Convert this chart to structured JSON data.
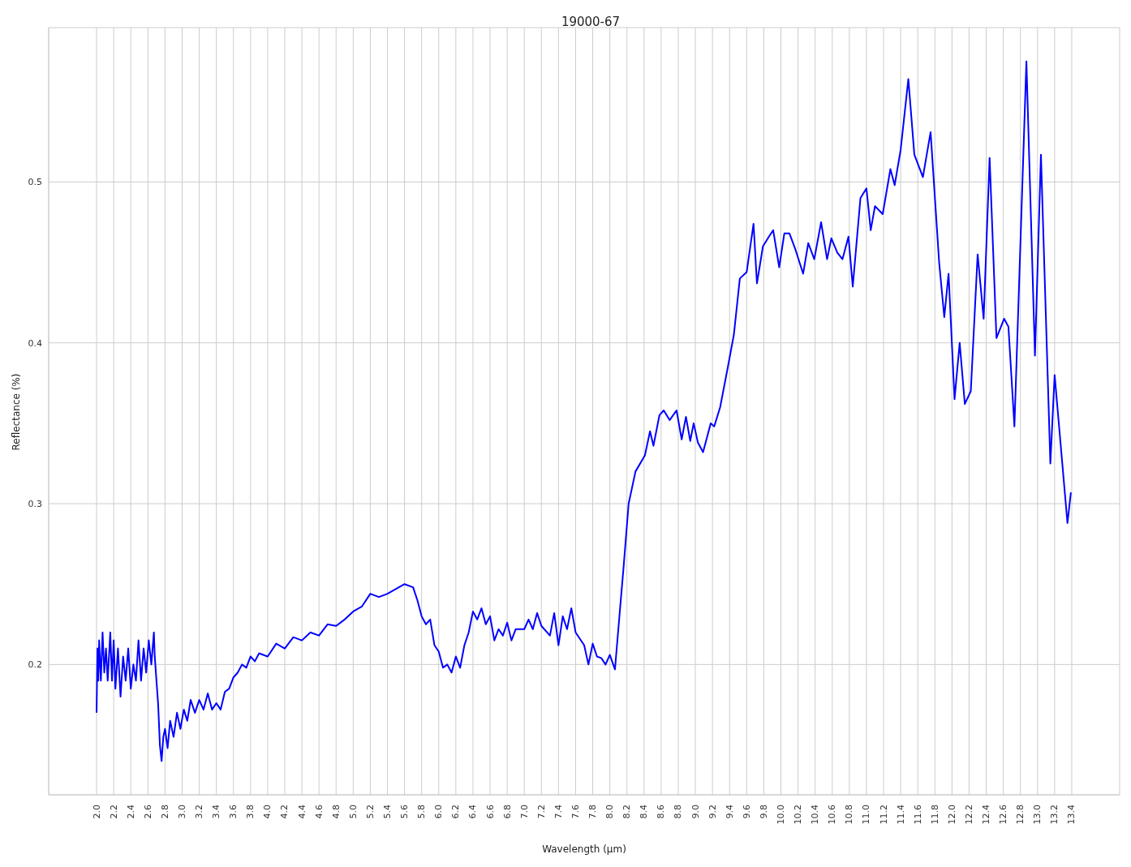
{
  "chart_data": {
    "type": "line",
    "title": "19000-67",
    "xlabel": "Wavelength (μm)",
    "ylabel": "Reflectance (%)",
    "grid": true,
    "marker": "none",
    "line_style": "solid",
    "legend": false,
    "xlim": [
      1.44,
      13.96
    ],
    "ylim": [
      0.119,
      0.596
    ],
    "yticks": [
      0.2,
      0.3,
      0.4,
      0.5
    ],
    "xticks": [
      {
        "value": 2.0,
        "label": "2.0"
      },
      {
        "value": 2.2,
        "label": "2.2"
      },
      {
        "value": 2.4,
        "label": "2.4"
      },
      {
        "value": 2.6,
        "label": "2.6"
      },
      {
        "value": 2.8,
        "label": "2.8"
      },
      {
        "value": 3.0,
        "label": "3.0"
      },
      {
        "value": 3.2,
        "label": "3.2"
      },
      {
        "value": 3.4,
        "label": "3.4"
      },
      {
        "value": 3.6,
        "label": "3.6"
      },
      {
        "value": 3.8,
        "label": "3.8"
      },
      {
        "value": 4.0,
        "label": "4.0"
      },
      {
        "value": 4.2,
        "label": "4.2"
      },
      {
        "value": 4.4,
        "label": "4.4"
      },
      {
        "value": 4.6,
        "label": "4.6"
      },
      {
        "value": 4.8,
        "label": "4.8"
      },
      {
        "value": 5.0,
        "label": "5.0"
      },
      {
        "value": 5.2,
        "label": "5.2"
      },
      {
        "value": 5.4,
        "label": "5.4"
      },
      {
        "value": 5.6,
        "label": "5.6"
      },
      {
        "value": 5.8,
        "label": "5.8"
      },
      {
        "value": 6.0,
        "label": "6.0"
      },
      {
        "value": 6.2,
        "label": "6.2"
      },
      {
        "value": 6.4,
        "label": "6.4"
      },
      {
        "value": 6.6,
        "label": "6.6"
      },
      {
        "value": 6.8,
        "label": "6.8"
      },
      {
        "value": 7.0,
        "label": "7.0"
      },
      {
        "value": 7.2,
        "label": "7.2"
      },
      {
        "value": 7.4,
        "label": "7.4"
      },
      {
        "value": 7.6,
        "label": "7.6"
      },
      {
        "value": 7.8,
        "label": "7.8"
      },
      {
        "value": 8.0,
        "label": "8.0"
      },
      {
        "value": 8.2,
        "label": "8.2"
      },
      {
        "value": 8.4,
        "label": "8.4"
      },
      {
        "value": 8.6,
        "label": "8.6"
      },
      {
        "value": 8.8,
        "label": "8.8"
      },
      {
        "value": 9.0,
        "label": "9.0"
      },
      {
        "value": 9.2,
        "label": "9.2"
      },
      {
        "value": 9.4,
        "label": "9.4"
      },
      {
        "value": 9.6,
        "label": "9.6"
      },
      {
        "value": 9.8,
        "label": "9.8"
      },
      {
        "value": 10.0,
        "label": "10.0"
      },
      {
        "value": 10.2,
        "label": "10.2"
      },
      {
        "value": 10.4,
        "label": "10.4"
      },
      {
        "value": 10.6,
        "label": "10.6"
      },
      {
        "value": 10.8,
        "label": "10.8"
      },
      {
        "value": 11.0,
        "label": "11.0"
      },
      {
        "value": 11.2,
        "label": "11.2"
      },
      {
        "value": 11.4,
        "label": "11.4"
      },
      {
        "value": 11.6,
        "label": "11.6"
      },
      {
        "value": 11.8,
        "label": "11.8"
      },
      {
        "value": 12.0,
        "label": "12.0"
      },
      {
        "value": 12.2,
        "label": "12.2"
      },
      {
        "value": 12.4,
        "label": "12.4"
      },
      {
        "value": 12.6,
        "label": "12.6"
      },
      {
        "value": 12.8,
        "label": "12.8"
      },
      {
        "value": 13.0,
        "label": "13.0"
      },
      {
        "value": 13.2,
        "label": "13.2"
      },
      {
        "value": 13.4,
        "label": "13.4"
      }
    ],
    "x": [
      2.0,
      2.01,
      2.02,
      2.03,
      2.05,
      2.07,
      2.09,
      2.11,
      2.13,
      2.16,
      2.18,
      2.2,
      2.22,
      2.25,
      2.28,
      2.31,
      2.34,
      2.37,
      2.4,
      2.43,
      2.46,
      2.49,
      2.52,
      2.55,
      2.58,
      2.61,
      2.64,
      2.67,
      2.68,
      2.7,
      2.72,
      2.74,
      2.76,
      2.78,
      2.8,
      2.83,
      2.86,
      2.9,
      2.94,
      2.98,
      3.02,
      3.06,
      3.1,
      3.15,
      3.2,
      3.25,
      3.3,
      3.35,
      3.4,
      3.45,
      3.5,
      3.55,
      3.6,
      3.65,
      3.7,
      3.75,
      3.8,
      3.85,
      3.9,
      4.0,
      4.1,
      4.2,
      4.3,
      4.4,
      4.5,
      4.6,
      4.7,
      4.8,
      4.9,
      5.0,
      5.1,
      5.2,
      5.3,
      5.4,
      5.5,
      5.6,
      5.7,
      5.75,
      5.8,
      5.85,
      5.9,
      5.95,
      6.0,
      6.05,
      6.1,
      6.15,
      6.2,
      6.25,
      6.3,
      6.35,
      6.4,
      6.45,
      6.5,
      6.55,
      6.6,
      6.65,
      6.7,
      6.75,
      6.8,
      6.85,
      6.9,
      7.0,
      7.05,
      7.1,
      7.15,
      7.2,
      7.3,
      7.35,
      7.4,
      7.45,
      7.5,
      7.55,
      7.6,
      7.7,
      7.75,
      7.8,
      7.85,
      7.9,
      7.95,
      8.0,
      8.06,
      8.12,
      8.16,
      8.22,
      8.3,
      8.41,
      8.47,
      8.51,
      8.58,
      8.63,
      8.7,
      8.78,
      8.84,
      8.89,
      8.94,
      8.98,
      9.03,
      9.09,
      9.18,
      9.22,
      9.29,
      9.38,
      9.45,
      9.52,
      9.6,
      9.68,
      9.72,
      9.79,
      9.86,
      9.91,
      9.98,
      10.04,
      10.1,
      10.17,
      10.26,
      10.32,
      10.39,
      10.47,
      10.54,
      10.59,
      10.66,
      10.72,
      10.79,
      10.84,
      10.93,
      11.0,
      11.05,
      11.1,
      11.19,
      11.28,
      11.33,
      11.4,
      11.49,
      11.56,
      11.66,
      11.75,
      11.85,
      11.91,
      11.96,
      12.03,
      12.09,
      12.15,
      12.22,
      12.3,
      12.37,
      12.44,
      12.52,
      12.61,
      12.66,
      12.73,
      12.87,
      12.97,
      13.04,
      13.15,
      13.2,
      13.35,
      13.39
    ],
    "series": [
      {
        "color": "#0000ff",
        "values": [
          0.17,
          0.21,
          0.19,
          0.215,
          0.19,
          0.22,
          0.195,
          0.21,
          0.19,
          0.22,
          0.19,
          0.215,
          0.185,
          0.21,
          0.18,
          0.205,
          0.19,
          0.21,
          0.185,
          0.2,
          0.19,
          0.215,
          0.19,
          0.21,
          0.195,
          0.215,
          0.2,
          0.22,
          0.205,
          0.19,
          0.175,
          0.15,
          0.14,
          0.155,
          0.16,
          0.148,
          0.165,
          0.155,
          0.17,
          0.16,
          0.172,
          0.165,
          0.178,
          0.17,
          0.178,
          0.172,
          0.182,
          0.172,
          0.176,
          0.172,
          0.183,
          0.185,
          0.192,
          0.195,
          0.2,
          0.198,
          0.205,
          0.202,
          0.207,
          0.205,
          0.213,
          0.21,
          0.217,
          0.215,
          0.22,
          0.218,
          0.225,
          0.224,
          0.228,
          0.233,
          0.236,
          0.244,
          0.242,
          0.244,
          0.247,
          0.25,
          0.248,
          0.24,
          0.23,
          0.225,
          0.228,
          0.212,
          0.208,
          0.198,
          0.2,
          0.195,
          0.205,
          0.198,
          0.212,
          0.22,
          0.233,
          0.228,
          0.235,
          0.225,
          0.23,
          0.215,
          0.222,
          0.218,
          0.226,
          0.215,
          0.222,
          0.222,
          0.228,
          0.222,
          0.232,
          0.224,
          0.218,
          0.232,
          0.212,
          0.23,
          0.222,
          0.235,
          0.22,
          0.212,
          0.2,
          0.213,
          0.205,
          0.204,
          0.2,
          0.206,
          0.197,
          0.235,
          0.26,
          0.3,
          0.32,
          0.33,
          0.345,
          0.336,
          0.355,
          0.358,
          0.352,
          0.358,
          0.34,
          0.354,
          0.339,
          0.35,
          0.338,
          0.332,
          0.35,
          0.348,
          0.36,
          0.385,
          0.405,
          0.44,
          0.444,
          0.474,
          0.437,
          0.46,
          0.466,
          0.47,
          0.447,
          0.468,
          0.468,
          0.458,
          0.443,
          0.462,
          0.452,
          0.475,
          0.452,
          0.465,
          0.456,
          0.452,
          0.466,
          0.435,
          0.49,
          0.496,
          0.47,
          0.485,
          0.48,
          0.508,
          0.498,
          0.52,
          0.564,
          0.517,
          0.503,
          0.531,
          0.45,
          0.416,
          0.443,
          0.365,
          0.4,
          0.362,
          0.37,
          0.455,
          0.415,
          0.515,
          0.403,
          0.415,
          0.41,
          0.348,
          0.575,
          0.392,
          0.517,
          0.325,
          0.38,
          0.288,
          0.307
        ]
      }
    ]
  }
}
